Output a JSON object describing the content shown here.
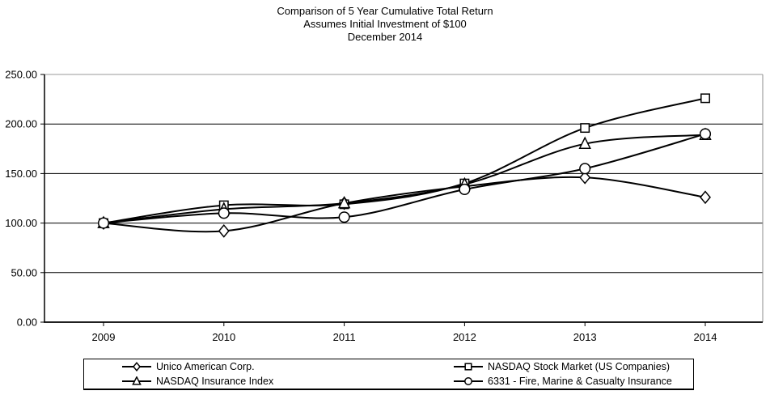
{
  "title": {
    "line1": "Comparison of 5 Year Cumulative Total Return",
    "line2": "Assumes Initial Investment of $100",
    "line3": "December 2014"
  },
  "chart_data": {
    "type": "line",
    "title": "Comparison of 5 Year Cumulative Total Return",
    "subtitle": "Assumes Initial Investment of $100",
    "date_label": "December 2014",
    "categories": [
      "2009",
      "2010",
      "2011",
      "2012",
      "2013",
      "2014"
    ],
    "series": [
      {
        "name": "Unico American Corp.",
        "marker": "diamond",
        "values": [
          100,
          92,
          120,
          137,
          146,
          126
        ]
      },
      {
        "name": "NASDAQ Stock Market (US Companies)",
        "marker": "square",
        "values": [
          100,
          118,
          119,
          140,
          196,
          226
        ]
      },
      {
        "name": "NASDAQ Insurance Index",
        "marker": "triangle",
        "values": [
          100,
          114,
          120,
          139,
          180,
          189
        ]
      },
      {
        "name": "6331 - Fire, Marine & Casualty Insurance",
        "marker": "circle",
        "values": [
          100,
          110,
          106,
          134,
          155,
          190
        ]
      }
    ],
    "ylim": [
      0,
      250
    ],
    "ytick_step": 50,
    "ytick_labels": [
      "0.00",
      "50.00",
      "100.00",
      "150.00",
      "200.00",
      "250.00"
    ],
    "grid": "horizontal",
    "legend_position": "bottom-box",
    "line_color": "#000000",
    "marker_fill": "#ffffff",
    "top_border_color": "#9a9a9a",
    "right_border_color": "#8c8c8c",
    "background": "#ffffff"
  }
}
